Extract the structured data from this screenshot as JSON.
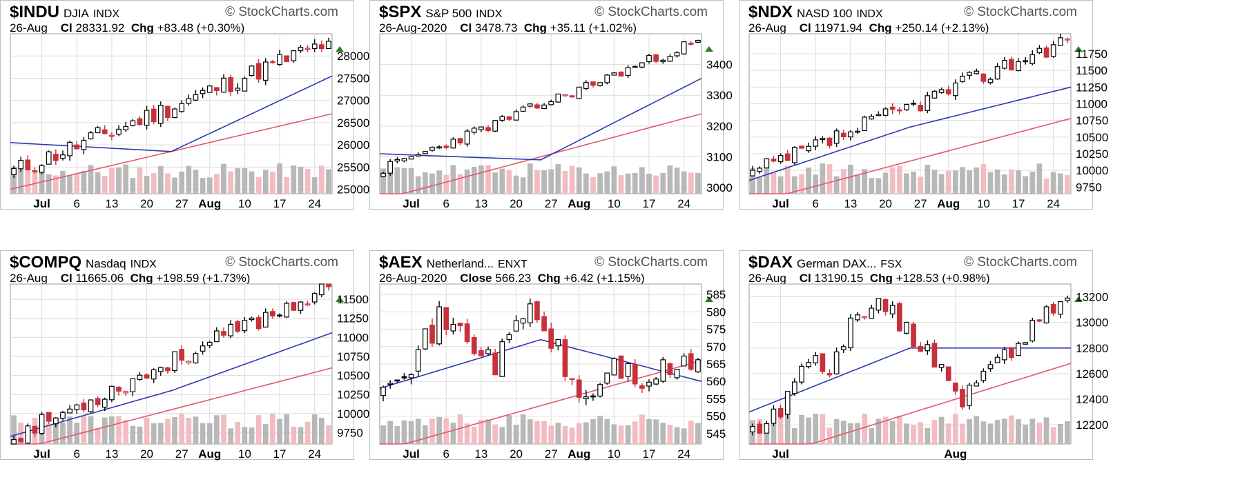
{
  "colors": {
    "up_fill": "#ffffff",
    "up_stroke": "#000000",
    "down": "#c8303c",
    "black": "#000000",
    "ma_fast": "#2a3ab0",
    "ma_slow": "#e05a66",
    "vol": "#b8b8b8",
    "vol_down": "#f2bcc2",
    "grid": "#dcdcdc",
    "watermark": "#555555",
    "up_arrow": "#2e7d2e"
  },
  "watermark": "© StockCharts.com",
  "chart_data": [
    {
      "type": "candlestick",
      "symbol": "$INDU",
      "name": "DJIA",
      "exchange": "INDX",
      "date": "26-Aug",
      "close_label": "Cl",
      "close": "28331.92",
      "chg_label": "Chg",
      "chg": "+83.48 (+0.30%)",
      "ylim": [
        24900,
        28500
      ],
      "yticks": [
        28000,
        27500,
        27000,
        26500,
        26000,
        25500,
        25000
      ],
      "xticks": [
        {
          "label": "Jul",
          "bold": true,
          "i": 4
        },
        {
          "label": "6",
          "i": 9
        },
        {
          "label": "13",
          "i": 14
        },
        {
          "label": "20",
          "i": 19
        },
        {
          "label": "27",
          "i": 24
        },
        {
          "label": "Aug",
          "bold": true,
          "i": 28
        },
        {
          "label": "10",
          "i": 33
        },
        {
          "label": "17",
          "i": 38
        },
        {
          "label": "24",
          "i": 43
        }
      ],
      "start": 25400,
      "end": 28320,
      "noise": 230,
      "ma_fast": [
        26050,
        25850,
        27550
      ],
      "ma_slow": [
        25000,
        26700
      ],
      "seed": 11
    },
    {
      "type": "candlestick",
      "symbol": "$SPX",
      "name": "S&P 500",
      "exchange": "INDX",
      "date": "26-Aug-2020",
      "close_label": "Cl",
      "close": "3478.73",
      "chg_label": "Chg",
      "chg": "+35.11 (+1.02%)",
      "ylim": [
        2980,
        3500
      ],
      "yticks": [
        3400,
        3300,
        3200,
        3100,
        3000
      ],
      "xticks": [
        {
          "label": "Jul",
          "bold": true,
          "i": 4
        },
        {
          "label": "6",
          "i": 9
        },
        {
          "label": "13",
          "i": 14
        },
        {
          "label": "20",
          "i": 19
        },
        {
          "label": "27",
          "i": 24
        },
        {
          "label": "Aug",
          "bold": true,
          "i": 28
        },
        {
          "label": "10",
          "i": 33
        },
        {
          "label": "17",
          "i": 38
        },
        {
          "label": "24",
          "i": 43
        }
      ],
      "start": 3060,
      "end": 3478,
      "noise": 18,
      "ma_fast": [
        3110,
        3090,
        3355
      ],
      "ma_slow": [
        2960,
        3240
      ],
      "seed": 23
    },
    {
      "type": "candlestick",
      "symbol": "$NDX",
      "name": "NASD 100",
      "exchange": "INDX",
      "date": "26-Aug",
      "close_label": "Cl",
      "close": "11971.94",
      "chg_label": "Chg",
      "chg": "+250.14 (+2.13%)",
      "ylim": [
        9650,
        12050
      ],
      "yticks": [
        11750,
        11500,
        11250,
        11000,
        10750,
        10500,
        10250,
        10000,
        9750
      ],
      "xticks": [
        {
          "label": "Jul",
          "bold": true,
          "i": 4
        },
        {
          "label": "6",
          "i": 9
        },
        {
          "label": "13",
          "i": 14
        },
        {
          "label": "20",
          "i": 19
        },
        {
          "label": "27",
          "i": 24
        },
        {
          "label": "Aug",
          "bold": true,
          "i": 28
        },
        {
          "label": "10",
          "i": 33
        },
        {
          "label": "17",
          "i": 38
        },
        {
          "label": "24",
          "i": 43
        }
      ],
      "start": 9950,
      "end": 11972,
      "noise": 140,
      "ma_fast": [
        9850,
        10650,
        11250
      ],
      "ma_slow": [
        9500,
        10780
      ],
      "seed": 37
    },
    {
      "type": "candlestick",
      "symbol": "$COMPQ",
      "name": "Nasdaq",
      "exchange": "INDX",
      "date": "26-Aug",
      "close_label": "Cl",
      "close": "11665.06",
      "chg_label": "Chg",
      "chg": "+198.59 (+1.73%)",
      "ylim": [
        9600,
        11700
      ],
      "yticks": [
        11500,
        11250,
        11000,
        10750,
        10500,
        10250,
        10000,
        9750
      ],
      "xticks": [
        {
          "label": "Jul",
          "bold": true,
          "i": 4
        },
        {
          "label": "6",
          "i": 9
        },
        {
          "label": "13",
          "i": 14
        },
        {
          "label": "20",
          "i": 19
        },
        {
          "label": "27",
          "i": 24
        },
        {
          "label": "Aug",
          "bold": true,
          "i": 28
        },
        {
          "label": "10",
          "i": 33
        },
        {
          "label": "17",
          "i": 38
        },
        {
          "label": "24",
          "i": 43
        }
      ],
      "start": 9700,
      "end": 11665,
      "noise": 120,
      "ma_fast": [
        9700,
        10300,
        11060
      ],
      "ma_slow": [
        9500,
        10600
      ],
      "seed": 53
    },
    {
      "type": "candlestick",
      "symbol": "$AEX",
      "name": "Netherland...",
      "exchange": "ENXT",
      "date": "26-Aug-2020",
      "close_label": "Close",
      "close": "566.23",
      "chg_label": "Chg",
      "chg": "+6.42 (+1.15%)",
      "ylim": [
        542,
        588
      ],
      "yticks": [
        585,
        580,
        575,
        570,
        565,
        560,
        555,
        550,
        545
      ],
      "xticks": [
        {
          "label": "Jul",
          "bold": true,
          "i": 4
        },
        {
          "label": "6",
          "i": 9
        },
        {
          "label": "13",
          "i": 14
        },
        {
          "label": "20",
          "i": 19
        },
        {
          "label": "27",
          "i": 24
        },
        {
          "label": "Aug",
          "bold": true,
          "i": 28
        },
        {
          "label": "10",
          "i": 33
        },
        {
          "label": "17",
          "i": 38
        },
        {
          "label": "24",
          "i": 43
        }
      ],
      "path": [
        562,
        566,
        578,
        572,
        565,
        582,
        570,
        553,
        565,
        560,
        563,
        566
      ],
      "noise": 4,
      "ma_fast": [
        558,
        572,
        560
      ],
      "ma_slow": [
        540,
        566
      ],
      "seed": 71
    },
    {
      "type": "candlestick",
      "symbol": "$DAX",
      "name": "German DAX...",
      "exchange": "FSX",
      "date": "26-Aug",
      "close_label": "Cl",
      "close": "13190.15",
      "chg_label": "Chg",
      "chg": "+128.53 (+0.98%)",
      "ylim": [
        12050,
        13300
      ],
      "yticks": [
        13200,
        13000,
        12800,
        12600,
        12400,
        12200
      ],
      "xticks": [
        {
          "label": "Jul",
          "bold": true,
          "i": 4
        },
        {
          "label": "Aug",
          "bold": true,
          "i": 29
        }
      ],
      "path": [
        12150,
        12300,
        12700,
        12650,
        13100,
        13150,
        12900,
        12700,
        12400,
        12650,
        12800,
        13050,
        13190
      ],
      "noise": 70,
      "ma_fast": [
        12300,
        12800,
        12800
      ],
      "ma_slow": [
        11900,
        12680
      ],
      "seed": 89
    }
  ]
}
